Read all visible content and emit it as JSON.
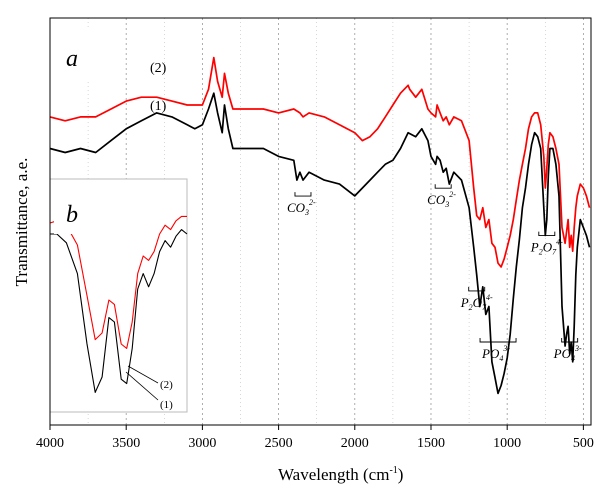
{
  "chart_data": [
    {
      "type": "line",
      "panel": "a",
      "xlabel": "Wavelength (cm",
      "xlabel_sup": "-1",
      "xlabel_close": ")",
      "ylabel": "Transmittance, a.e.",
      "xlim": [
        4000,
        450
      ],
      "x_reversed": true,
      "x_ticks": [
        "4000",
        "3500",
        "3000",
        "2500",
        "2000",
        "1500",
        "1000",
        "500"
      ],
      "grid": "dotted vertical",
      "series": [
        {
          "name": "(2)",
          "color": "#ff0000",
          "x": [
            4000,
            3900,
            3800,
            3700,
            3600,
            3500,
            3400,
            3300,
            3200,
            3100,
            3050,
            3000,
            2960,
            2925,
            2900,
            2870,
            2855,
            2830,
            2800,
            2700,
            2600,
            2500,
            2400,
            2360,
            2340,
            2300,
            2200,
            2100,
            2000,
            1950,
            1900,
            1850,
            1800,
            1750,
            1700,
            1650,
            1640,
            1600,
            1560,
            1520,
            1500,
            1470,
            1460,
            1440,
            1420,
            1400,
            1380,
            1350,
            1300,
            1250,
            1220,
            1200,
            1180,
            1160,
            1140,
            1120,
            1100,
            1080,
            1060,
            1040,
            1020,
            1000,
            980,
            960,
            940,
            920,
            900,
            880,
            860,
            840,
            820,
            800,
            780,
            760,
            750,
            740,
            730,
            720,
            700,
            680,
            660,
            640,
            620,
            610,
            600,
            590,
            580,
            570,
            560,
            550,
            540,
            520,
            500,
            480,
            460
          ],
          "y": [
            0.78,
            0.77,
            0.78,
            0.78,
            0.8,
            0.82,
            0.83,
            0.83,
            0.82,
            0.81,
            0.81,
            0.81,
            0.85,
            0.93,
            0.87,
            0.83,
            0.89,
            0.84,
            0.8,
            0.8,
            0.8,
            0.79,
            0.8,
            0.79,
            0.78,
            0.79,
            0.78,
            0.76,
            0.74,
            0.72,
            0.73,
            0.75,
            0.78,
            0.81,
            0.84,
            0.86,
            0.85,
            0.83,
            0.85,
            0.8,
            0.79,
            0.78,
            0.81,
            0.79,
            0.77,
            0.78,
            0.76,
            0.78,
            0.77,
            0.72,
            0.6,
            0.53,
            0.52,
            0.55,
            0.5,
            0.52,
            0.46,
            0.45,
            0.41,
            0.4,
            0.42,
            0.45,
            0.48,
            0.52,
            0.57,
            0.62,
            0.66,
            0.7,
            0.75,
            0.78,
            0.79,
            0.79,
            0.76,
            0.68,
            0.6,
            0.65,
            0.71,
            0.74,
            0.73,
            0.7,
            0.66,
            0.5,
            0.46,
            0.49,
            0.52,
            0.45,
            0.48,
            0.44,
            0.5,
            0.55,
            0.58,
            0.61,
            0.6,
            0.58,
            0.55
          ]
        },
        {
          "name": "(1)",
          "color": "#000000",
          "x": [
            4000,
            3900,
            3800,
            3700,
            3600,
            3500,
            3400,
            3300,
            3200,
            3100,
            3050,
            3000,
            2960,
            2925,
            2900,
            2870,
            2855,
            2830,
            2800,
            2700,
            2600,
            2500,
            2400,
            2380,
            2360,
            2340,
            2300,
            2200,
            2100,
            2000,
            1950,
            1900,
            1850,
            1800,
            1750,
            1700,
            1650,
            1600,
            1560,
            1520,
            1500,
            1470,
            1460,
            1440,
            1420,
            1400,
            1380,
            1350,
            1300,
            1250,
            1220,
            1200,
            1180,
            1160,
            1140,
            1120,
            1100,
            1080,
            1060,
            1040,
            1020,
            1000,
            980,
            960,
            940,
            920,
            900,
            880,
            860,
            840,
            820,
            800,
            780,
            760,
            750,
            740,
            730,
            720,
            700,
            680,
            660,
            640,
            620,
            610,
            600,
            590,
            580,
            570,
            560,
            550,
            540,
            520,
            500,
            480,
            460
          ],
          "y": [
            0.7,
            0.69,
            0.7,
            0.69,
            0.72,
            0.75,
            0.77,
            0.79,
            0.78,
            0.76,
            0.75,
            0.76,
            0.8,
            0.84,
            0.79,
            0.74,
            0.81,
            0.75,
            0.7,
            0.7,
            0.7,
            0.68,
            0.67,
            0.62,
            0.64,
            0.62,
            0.64,
            0.62,
            0.61,
            0.58,
            0.6,
            0.62,
            0.64,
            0.66,
            0.67,
            0.7,
            0.74,
            0.73,
            0.75,
            0.72,
            0.68,
            0.66,
            0.68,
            0.67,
            0.64,
            0.65,
            0.61,
            0.64,
            0.62,
            0.55,
            0.45,
            0.38,
            0.3,
            0.35,
            0.28,
            0.3,
            0.16,
            0.12,
            0.08,
            0.1,
            0.13,
            0.17,
            0.23,
            0.32,
            0.4,
            0.47,
            0.55,
            0.6,
            0.66,
            0.71,
            0.74,
            0.73,
            0.7,
            0.55,
            0.48,
            0.52,
            0.63,
            0.7,
            0.7,
            0.66,
            0.58,
            0.3,
            0.2,
            0.23,
            0.25,
            0.18,
            0.21,
            0.16,
            0.25,
            0.38,
            0.45,
            0.52,
            0.5,
            0.48,
            0.45
          ]
        }
      ],
      "annotations": [
        {
          "main": "CO",
          "sub": "3",
          "sup": "2-",
          "x": 2340
        },
        {
          "main": "CO",
          "sub": "3",
          "sup": "2-",
          "x": 1420
        },
        {
          "main": "P",
          "sub": "2",
          "main2": "O",
          "sub2": "7",
          "sup": "4-",
          "x": 1200
        },
        {
          "main": "PO",
          "sub": "4",
          "sup": "3-",
          "x": 1060
        },
        {
          "main": "P",
          "sub": "2",
          "main2": "O",
          "sub2": "7",
          "sup": "4-",
          "x": 740
        },
        {
          "main": "PO",
          "sub": "4",
          "sup": "3-",
          "x": 590
        }
      ]
    },
    {
      "type": "line",
      "panel": "b",
      "inset": true,
      "series": [
        {
          "name": "(2)",
          "color": "#ff0000",
          "x": [
            0,
            0.05,
            0.12,
            0.2,
            0.27,
            0.33,
            0.38,
            0.43,
            0.47,
            0.52,
            0.56,
            0.6,
            0.64,
            0.68,
            0.72,
            0.76,
            0.8,
            0.84,
            0.88,
            0.92,
            0.96,
            1.0
          ],
          "y": [
            0.85,
            0.86,
            0.84,
            0.75,
            0.52,
            0.32,
            0.35,
            0.5,
            0.48,
            0.3,
            0.28,
            0.4,
            0.62,
            0.7,
            0.68,
            0.72,
            0.8,
            0.84,
            0.82,
            0.86,
            0.88,
            0.88
          ]
        },
        {
          "name": "(1)",
          "color": "#000000",
          "x": [
            0,
            0.05,
            0.12,
            0.2,
            0.27,
            0.33,
            0.38,
            0.43,
            0.47,
            0.52,
            0.56,
            0.6,
            0.64,
            0.68,
            0.72,
            0.76,
            0.8,
            0.84,
            0.88,
            0.92,
            0.96,
            1.0
          ],
          "y": [
            0.8,
            0.8,
            0.76,
            0.62,
            0.3,
            0.08,
            0.15,
            0.42,
            0.4,
            0.14,
            0.12,
            0.28,
            0.55,
            0.62,
            0.56,
            0.62,
            0.72,
            0.77,
            0.74,
            0.79,
            0.82,
            0.8
          ]
        }
      ]
    }
  ],
  "labels": {
    "panel_a": "a",
    "panel_b": "b",
    "series2_a": "(2)",
    "series1_a": "(1)",
    "series2_b": "(2)",
    "series1_b": "(1)"
  }
}
